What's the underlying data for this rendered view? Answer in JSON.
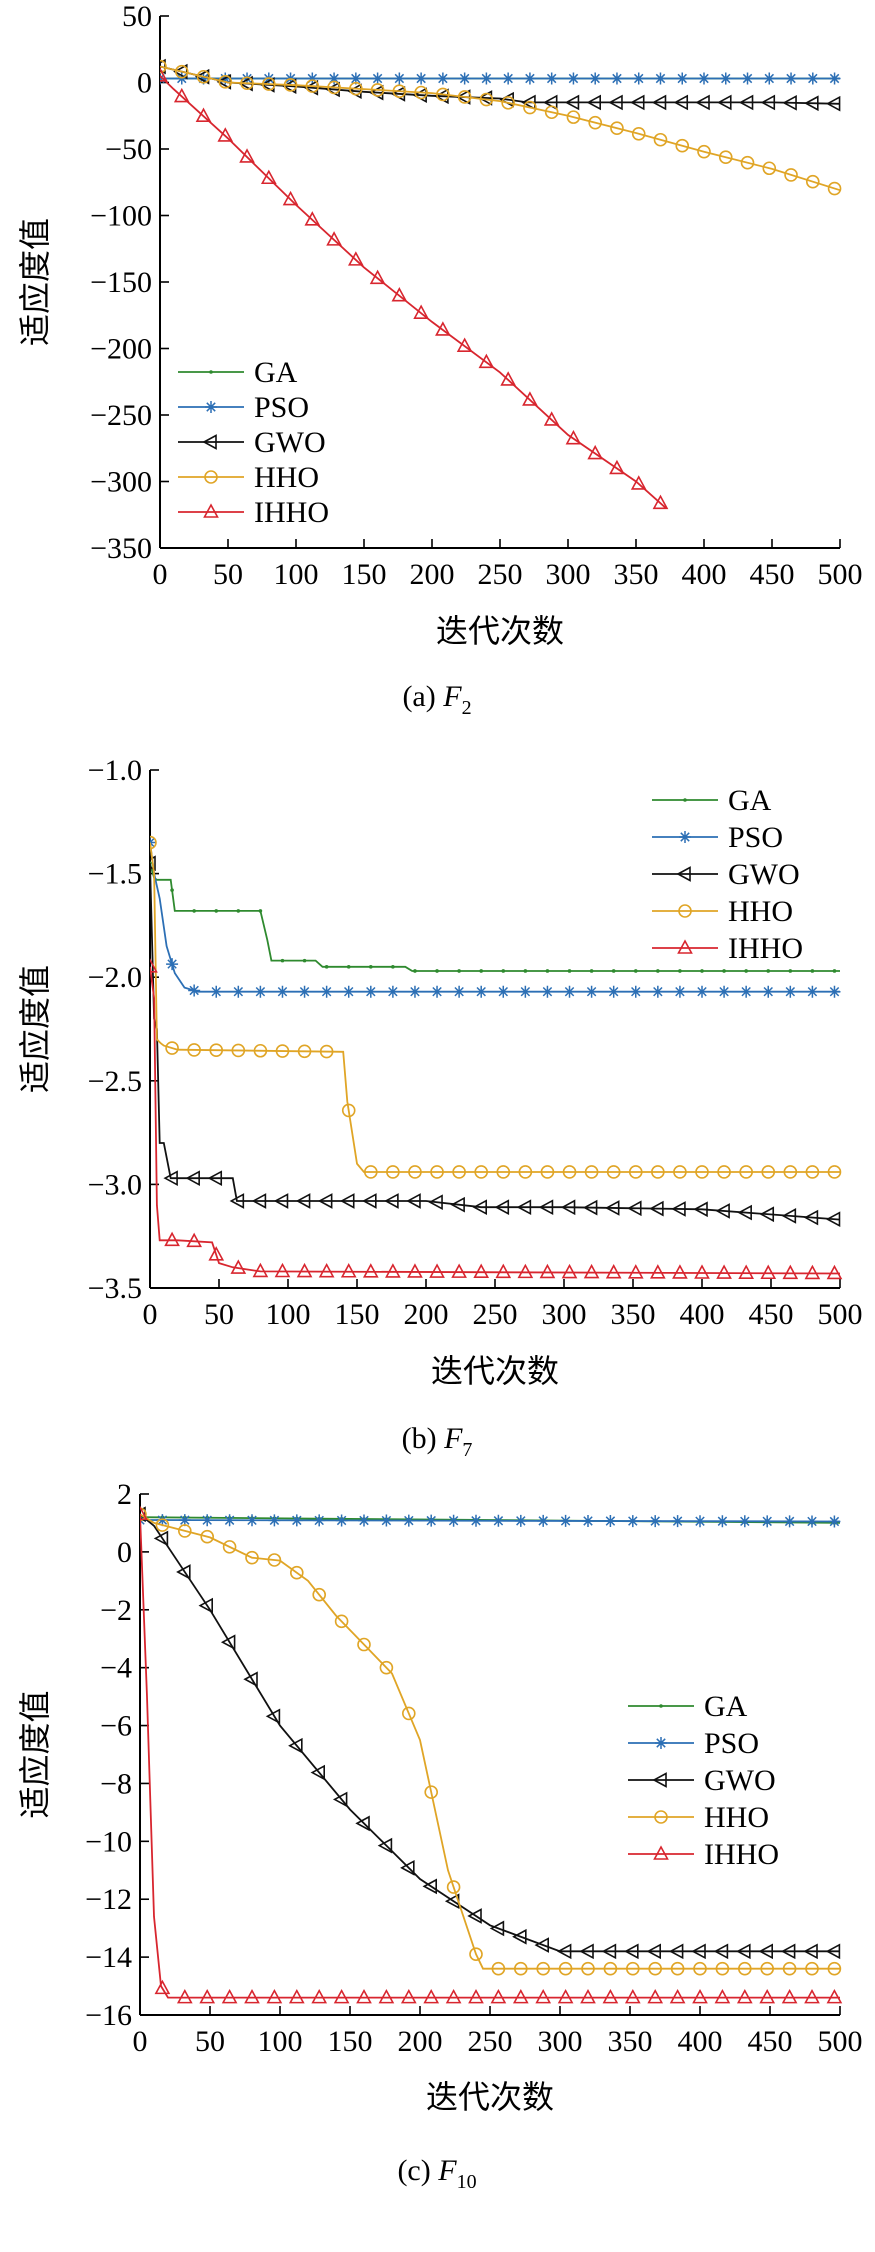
{
  "colors": {
    "GA": "#2f8a2f",
    "PSO": "#2c6fb5",
    "GWO": "#111111",
    "HHO": "#e0a526",
    "IHHO": "#d8262f"
  },
  "markers": {
    "GA": "dot",
    "PSO": "star",
    "GWO": "triangle-left",
    "HHO": "circle",
    "IHHO": "triangle-up"
  },
  "chart_data": [
    {
      "type": "line",
      "caption": {
        "prefix": "(a) ",
        "func": "F",
        "sub": "2"
      },
      "xlabel": "迭代次数",
      "ylabel": "适应度值",
      "xlim": [
        0,
        500
      ],
      "ylim": [
        -350,
        50
      ],
      "xticks": [
        0,
        50,
        100,
        150,
        200,
        250,
        300,
        350,
        400,
        450,
        500
      ],
      "yticks": [
        50,
        0,
        -50,
        -100,
        -150,
        -200,
        -250,
        -300,
        -350
      ],
      "legend": "lower-left",
      "series": [
        {
          "name": "GA",
          "x": [
            0,
            500
          ],
          "y": [
            3,
            3
          ],
          "markEvery": 16
        },
        {
          "name": "PSO",
          "x": [
            0,
            500
          ],
          "y": [
            3,
            3
          ],
          "markEvery": 16
        },
        {
          "name": "GWO",
          "x": [
            0,
            50,
            100,
            150,
            200,
            250,
            270,
            300,
            350,
            400,
            450,
            500
          ],
          "y": [
            12,
            0,
            -3,
            -7,
            -10,
            -12,
            -15,
            -15,
            -15,
            -15,
            -15,
            -16
          ],
          "markEvery": 16
        },
        {
          "name": "HHO",
          "x": [
            0,
            50,
            100,
            150,
            200,
            250,
            300,
            350,
            400,
            450,
            500
          ],
          "y": [
            12,
            0,
            -2,
            -5,
            -8,
            -14,
            -25,
            -38,
            -52,
            -65,
            -81
          ],
          "markEvery": 16
        },
        {
          "name": "IHHO",
          "x": [
            0,
            10,
            50,
            100,
            150,
            200,
            250,
            300,
            350,
            372
          ],
          "y": [
            5,
            -5,
            -42,
            -92,
            -139,
            -180,
            -218,
            -265,
            -300,
            -320
          ],
          "markEvery": 16
        }
      ]
    },
    {
      "type": "line",
      "caption": {
        "prefix": "(b) ",
        "func": "F",
        "sub": "7"
      },
      "xlabel": "迭代次数",
      "ylabel": "适应度值",
      "xlim": [
        0,
        500
      ],
      "ylim": [
        -3.5,
        -1.0
      ],
      "xticks": [
        0,
        50,
        100,
        150,
        200,
        250,
        300,
        350,
        400,
        450,
        500
      ],
      "yticks": [
        -1.0,
        -1.5,
        -2.0,
        -2.5,
        -3.0,
        -3.5
      ],
      "legend": "top-right",
      "series": [
        {
          "name": "GA",
          "x": [
            0,
            3,
            5,
            15,
            18,
            80,
            85,
            88,
            120,
            125,
            185,
            190,
            500
          ],
          "y": [
            -1.45,
            -1.52,
            -1.53,
            -1.53,
            -1.68,
            -1.68,
            -1.82,
            -1.92,
            -1.92,
            -1.95,
            -1.95,
            -1.97,
            -1.97
          ],
          "markEvery": 16
        },
        {
          "name": "PSO",
          "x": [
            0,
            3,
            7,
            12,
            18,
            25,
            35,
            500
          ],
          "y": [
            -1.35,
            -1.5,
            -1.62,
            -1.85,
            -1.98,
            -2.05,
            -2.07,
            -2.07
          ],
          "markEvery": 16
        },
        {
          "name": "GWO",
          "x": [
            0,
            3,
            5,
            7,
            10,
            15,
            60,
            63,
            200,
            240,
            300,
            400,
            500
          ],
          "y": [
            -1.45,
            -2.2,
            -2.25,
            -2.8,
            -2.8,
            -2.97,
            -2.97,
            -3.08,
            -3.08,
            -3.11,
            -3.11,
            -3.12,
            -3.17
          ],
          "markEvery": 16
        },
        {
          "name": "HHO",
          "x": [
            0,
            3,
            5,
            8,
            10,
            20,
            140,
            143,
            150,
            155,
            500
          ],
          "y": [
            -1.35,
            -1.5,
            -2.3,
            -2.32,
            -2.33,
            -2.35,
            -2.36,
            -2.6,
            -2.9,
            -2.94,
            -2.94
          ],
          "markEvery": 16
        },
        {
          "name": "IHHO",
          "x": [
            0,
            3,
            5,
            7,
            20,
            45,
            50,
            60,
            70,
            80,
            500
          ],
          "y": [
            -1.95,
            -2.1,
            -3.1,
            -3.27,
            -3.27,
            -3.28,
            -3.38,
            -3.4,
            -3.41,
            -3.42,
            -3.43
          ],
          "markEvery": 16
        }
      ]
    },
    {
      "type": "line",
      "caption": {
        "prefix": "(c) ",
        "func": "F",
        "sub": "10"
      },
      "xlabel": "迭代次数",
      "ylabel": "适应度值",
      "xlim": [
        0,
        500
      ],
      "ylim": [
        -16,
        2
      ],
      "xticks": [
        0,
        50,
        100,
        150,
        200,
        250,
        300,
        350,
        400,
        450,
        500
      ],
      "yticks": [
        2,
        0,
        -2,
        -4,
        -6,
        -8,
        -10,
        -12,
        -14,
        -16
      ],
      "legend": "center-right",
      "series": [
        {
          "name": "GA",
          "x": [
            0,
            500
          ],
          "y": [
            1.2,
            1.0
          ],
          "markEvery": 16
        },
        {
          "name": "PSO",
          "x": [
            0,
            500
          ],
          "y": [
            1.1,
            1.05
          ],
          "markEvery": 16
        },
        {
          "name": "GWO",
          "x": [
            0,
            10,
            50,
            100,
            150,
            200,
            250,
            300,
            310,
            500
          ],
          "y": [
            1.3,
            0.9,
            -2.0,
            -6.0,
            -8.9,
            -11.3,
            -12.9,
            -13.8,
            -13.8,
            -13.8
          ],
          "markEvery": 16
        },
        {
          "name": "HHO",
          "x": [
            0,
            10,
            50,
            80,
            100,
            120,
            140,
            160,
            180,
            200,
            220,
            240,
            245,
            500
          ],
          "y": [
            1.3,
            1.0,
            0.5,
            -0.2,
            -0.3,
            -1.0,
            -2.2,
            -3.2,
            -4.2,
            -6.5,
            -11.0,
            -13.9,
            -14.4,
            -14.4
          ],
          "markEvery": 16
        },
        {
          "name": "IHHO",
          "x": [
            0,
            5,
            10,
            15,
            20,
            500
          ],
          "y": [
            1.3,
            -5.0,
            -12.6,
            -15.0,
            -15.4,
            -15.4
          ],
          "markEvery": 16
        }
      ]
    }
  ]
}
